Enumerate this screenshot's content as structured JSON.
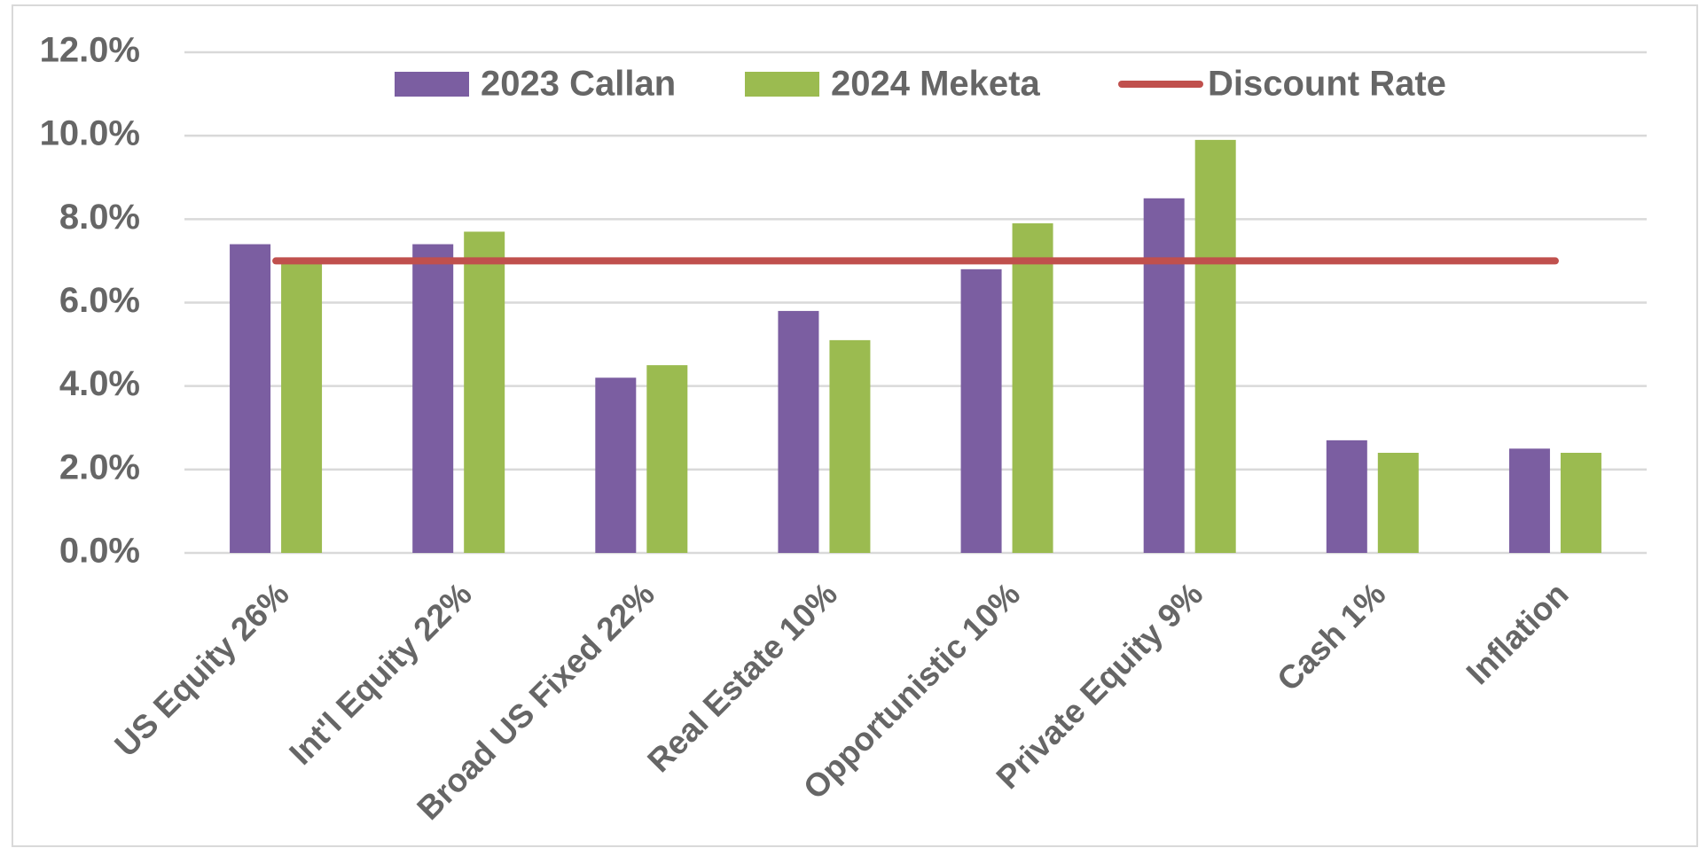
{
  "chart_data": {
    "type": "bar",
    "categories": [
      "US Equity 26%",
      "Int'l Equity 22%",
      "Broad US Fixed 22%",
      "Real Estate 10%",
      "Opportunistic 10%",
      "Private Equity 9%",
      "Cash 1%",
      "Inflation"
    ],
    "series": [
      {
        "name": "2023 Callan",
        "color": "#7b5ea1",
        "type": "bar",
        "values": [
          7.4,
          7.4,
          4.2,
          5.8,
          6.8,
          8.5,
          2.7,
          2.5
        ]
      },
      {
        "name": "2024 Meketa",
        "color": "#9bbb50",
        "type": "bar",
        "values": [
          7.0,
          7.7,
          4.5,
          5.1,
          7.9,
          9.9,
          2.4,
          2.4
        ]
      },
      {
        "name": "Discount Rate",
        "color": "#c0504d",
        "type": "line",
        "values": [
          7.0,
          7.0,
          7.0,
          7.0,
          7.0,
          7.0,
          7.0,
          7.0
        ]
      }
    ],
    "ylim": [
      0,
      12
    ],
    "yticks": [
      {
        "value": 0,
        "label": "0.0%"
      },
      {
        "value": 2,
        "label": "2.0%"
      },
      {
        "value": 4,
        "label": "4.0%"
      },
      {
        "value": 6,
        "label": "6.0%"
      },
      {
        "value": 8,
        "label": "8.0%"
      },
      {
        "value": 10,
        "label": "10.0%"
      },
      {
        "value": 12,
        "label": "12.0%"
      }
    ],
    "grid": true,
    "legend": "top"
  }
}
